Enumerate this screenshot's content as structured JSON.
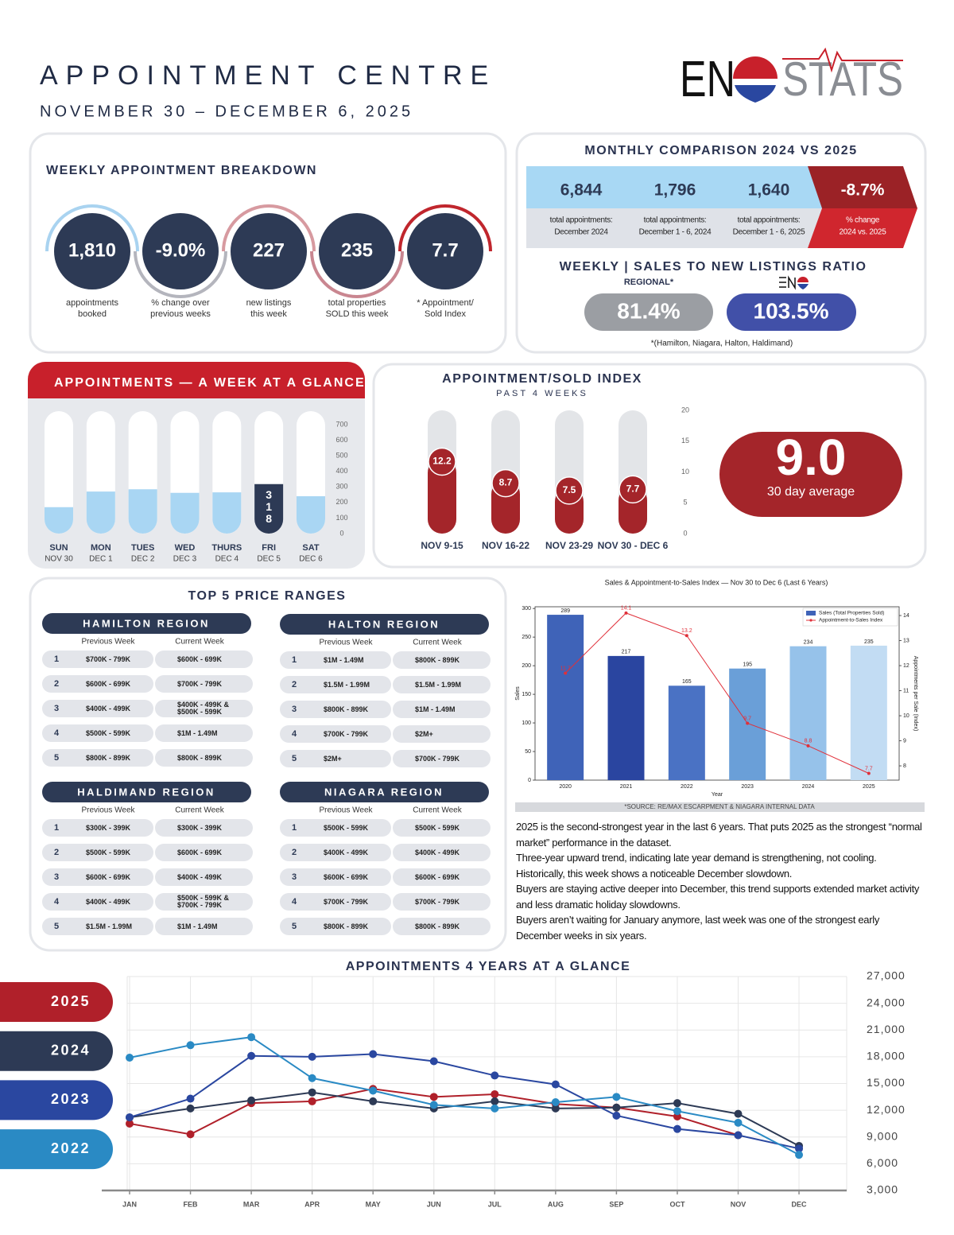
{
  "header": {
    "title": "APPOINTMENT CENTRE",
    "subtitle": "NOVEMBER 30 – DECEMBER 6, 2025",
    "logo": {
      "left": "EN",
      "right": "STATS"
    }
  },
  "weekly_breakdown": {
    "title": "WEEKLY APPOINTMENT BREAKDOWN",
    "items": [
      {
        "value": "1,810",
        "label": [
          "appointments",
          "booked"
        ]
      },
      {
        "value": "-9.0%",
        "label": [
          "% change over",
          "previous weeks"
        ]
      },
      {
        "value": "227",
        "label": [
          "new listings",
          "this week"
        ]
      },
      {
        "value": "235",
        "label": [
          "total properties",
          "SOLD this week"
        ]
      },
      {
        "value": "7.7",
        "label": [
          "* Appointment/",
          "Sold Index"
        ]
      }
    ]
  },
  "monthly_comparison": {
    "title": "MONTHLY COMPARISON 2024 VS 2025",
    "items": [
      {
        "value": "6,844",
        "label": [
          "total appointments:",
          "December 2024"
        ]
      },
      {
        "value": "1,796",
        "label": [
          "total appointments:",
          "December 1 - 6, 2024"
        ]
      },
      {
        "value": "1,640",
        "label": [
          "total appointments:",
          "December 1 - 6, 2025"
        ]
      },
      {
        "value": "-8.7%",
        "label": [
          "% change",
          "2024 vs. 2025"
        ]
      }
    ]
  },
  "sales_ratio": {
    "title": "WEEKLY | SALES TO NEW LISTINGS RATIO",
    "regional_label": "REGIONAL*",
    "regional_value": "81.4%",
    "eng_value": "103.5%",
    "footnote": "*(Hamilton, Niagara, Halton, Haldimand)"
  },
  "index_average": {
    "value": "9.0",
    "label": "30 day average"
  },
  "price_ranges": {
    "title": "TOP 5 PRICE RANGES",
    "regions": [
      {
        "name": "HAMILTON REGION",
        "columns": [
          "Previous Week",
          "Current Week"
        ],
        "rows": [
          [
            1,
            "$700K - 799K",
            "$600K - 699K"
          ],
          [
            2,
            "$600K - 699K",
            "$700K - 799K"
          ],
          [
            3,
            "$400K - 499K",
            "$400K - 499K & $500K - 599K"
          ],
          [
            4,
            "$500K - 599K",
            "$1M - 1.49M"
          ],
          [
            5,
            "$800K - 899K",
            "$800K - 899K"
          ]
        ]
      },
      {
        "name": "HALTON REGION",
        "columns": [
          "Previous Week",
          "Current Week"
        ],
        "rows": [
          [
            1,
            "$1M - 1.49M",
            "$800K - 899K"
          ],
          [
            2,
            "$1.5M - 1.99M",
            "$1.5M - 1.99M"
          ],
          [
            3,
            "$800K - 899K",
            "$1M - 1.49M"
          ],
          [
            4,
            "$700K - 799K",
            "$2M+"
          ],
          [
            5,
            "$2M+",
            "$700K - 799K"
          ]
        ]
      },
      {
        "name": "HALDIMAND REGION",
        "columns": [
          "Previous Week",
          "Current Week"
        ],
        "rows": [
          [
            1,
            "$300K - 399K",
            "$300K - 399K"
          ],
          [
            2,
            "$500K - 599K",
            "$600K - 699K"
          ],
          [
            3,
            "$600K - 699K",
            "$400K - 499K"
          ],
          [
            4,
            "$400K - 499K",
            "$500K - 599K & $700K - 799K"
          ],
          [
            5,
            "$1.5M - 1.99M",
            "$1M - 1.49M"
          ]
        ]
      },
      {
        "name": "NIAGARA REGION",
        "columns": [
          "Previous Week",
          "Current Week"
        ],
        "rows": [
          [
            1,
            "$500K - 599K",
            "$500K - 599K"
          ],
          [
            2,
            "$400K - 499K",
            "$400K - 499K"
          ],
          [
            3,
            "$600K - 699K",
            "$600K - 699K"
          ],
          [
            4,
            "$700K - 799K",
            "$700K - 799K"
          ],
          [
            5,
            "$800K - 899K",
            "$800K - 899K"
          ]
        ]
      }
    ]
  },
  "source": "*SOURCE:  RE/MAX ESCARPMENT & NIAGARA INTERNAL DATA",
  "notes": [
    "2025 is the second-strongest year in the last 6 years. That puts 2025 as the strongest “normal market” performance in the dataset.",
    "Three-year upward trend, indicating late year demand is strengthening, not cooling.",
    "Historically, this week shows a noticeable December slowdown.",
    "Buyers are staying active deeper into December, this trend supports extended market activity and less dramatic holiday slowdowns.",
    "Buyers aren’t waiting for January anymore, last week was one of the strongest early December weeks in six years."
  ],
  "chart_data": [
    {
      "type": "bar",
      "title": "APPOINTMENTS — A WEEK AT A GLANCE",
      "categories": [
        "SUN",
        "MON",
        "TUES",
        "WED",
        "THURS",
        "FRI",
        "SAT"
      ],
      "dates": [
        "NOV 30",
        "DEC 1",
        "DEC 2",
        "DEC 3",
        "DEC 4",
        "DEC 5",
        "DEC 6"
      ],
      "values": [
        170,
        270,
        285,
        262,
        265,
        318,
        240
      ],
      "value_labels": [
        null,
        null,
        null,
        null,
        null,
        "318",
        null
      ],
      "colors": [
        "#a9d6f3",
        "#a9d6f3",
        "#a9d6f3",
        "#a9d6f3",
        "#a9d6f3",
        "#2d3a55",
        "#a9d6f3"
      ],
      "ylim": [
        0,
        700
      ],
      "yticks": [
        0,
        100,
        200,
        300,
        400,
        500,
        600,
        700
      ]
    },
    {
      "type": "bar",
      "title": "APPOINTMENT/SOLD INDEX",
      "subtitle": "PAST 4 WEEKS",
      "categories": [
        "NOV 9-15",
        "NOV 16-22",
        "NOV 23-29",
        "NOV 30 - DEC 6"
      ],
      "values": [
        12.2,
        8.7,
        7.5,
        7.7
      ],
      "color": "#a4252a",
      "ylim": [
        0,
        20
      ],
      "yticks": [
        0,
        5,
        10,
        15,
        20
      ]
    },
    {
      "type": "combo",
      "title": "Sales & Appointment-to-Sales Index — Nov 30 to Dec 6 (Last 6 Years)",
      "categories": [
        "2020",
        "2021",
        "2022",
        "2023",
        "2024",
        "2025"
      ],
      "series": [
        {
          "name": "Sales (Total Properties Sold)",
          "type": "bar",
          "color": "#3f63b8",
          "colors": [
            "#3f63b8",
            "#2a45a0",
            "#4a72c4",
            "#6a9fd8",
            "#96c2ea",
            "#c2dcf3"
          ],
          "values": [
            289,
            217,
            165,
            195,
            234,
            235
          ]
        },
        {
          "name": "Appointment-to-Sales Index",
          "type": "line",
          "color": "#e0303a",
          "axis": "y2",
          "values": [
            11.7,
            14.1,
            13.2,
            9.7,
            8.8,
            7.7
          ]
        }
      ],
      "xlabel": "Year",
      "ylabel": "Sales",
      "y2label": "Appointments per Sale (Index)",
      "ylim": [
        0,
        303
      ],
      "yticks": [
        0,
        50,
        100,
        150,
        200,
        250,
        300
      ],
      "y2lim": [
        7.43,
        14.35
      ],
      "y2ticks": [
        8,
        9,
        10,
        11,
        12,
        13,
        14
      ],
      "legend": "upper right"
    },
    {
      "type": "line",
      "title": "APPOINTMENTS 4 YEARS AT A GLANCE",
      "categories": [
        "JAN",
        "FEB",
        "MAR",
        "APR",
        "MAY",
        "JUN",
        "JUL",
        "AUG",
        "SEP",
        "OCT",
        "NOV",
        "DEC"
      ],
      "series": [
        {
          "name": "2025",
          "color": "#b0202a",
          "values": [
            10500,
            9300,
            12800,
            13000,
            14400,
            13500,
            13800,
            12700,
            12300,
            11300,
            9200,
            null
          ]
        },
        {
          "name": "2024",
          "color": "#2d3a55",
          "values": [
            11200,
            12200,
            13100,
            14000,
            13000,
            12200,
            13000,
            12200,
            12300,
            12800,
            11600,
            8000
          ]
        },
        {
          "name": "2023",
          "color": "#2a47a0",
          "values": [
            11200,
            13300,
            18100,
            18000,
            18300,
            17500,
            15900,
            14900,
            11400,
            9900,
            9200,
            7700
          ]
        },
        {
          "name": "2022",
          "color": "#2a8ac4",
          "values": [
            17900,
            19300,
            20200,
            15600,
            14200,
            12600,
            12200,
            12900,
            13500,
            11900,
            10600,
            7000
          ]
        }
      ],
      "ylim": [
        3000,
        27000
      ],
      "yticks": [
        {
          "value": 3000,
          "label": "3,000"
        },
        {
          "value": 6000,
          "label": "6,000"
        },
        {
          "value": 9000,
          "label": "9,000"
        },
        {
          "value": 12000,
          "label": "12,000"
        },
        {
          "value": 15000,
          "label": "15,000"
        },
        {
          "value": 18000,
          "label": "18,000"
        },
        {
          "value": 21000,
          "label": "21,000"
        },
        {
          "value": 24000,
          "label": "24,000"
        },
        {
          "value": 27000,
          "label": "27,000"
        }
      ],
      "grid": true
    }
  ]
}
